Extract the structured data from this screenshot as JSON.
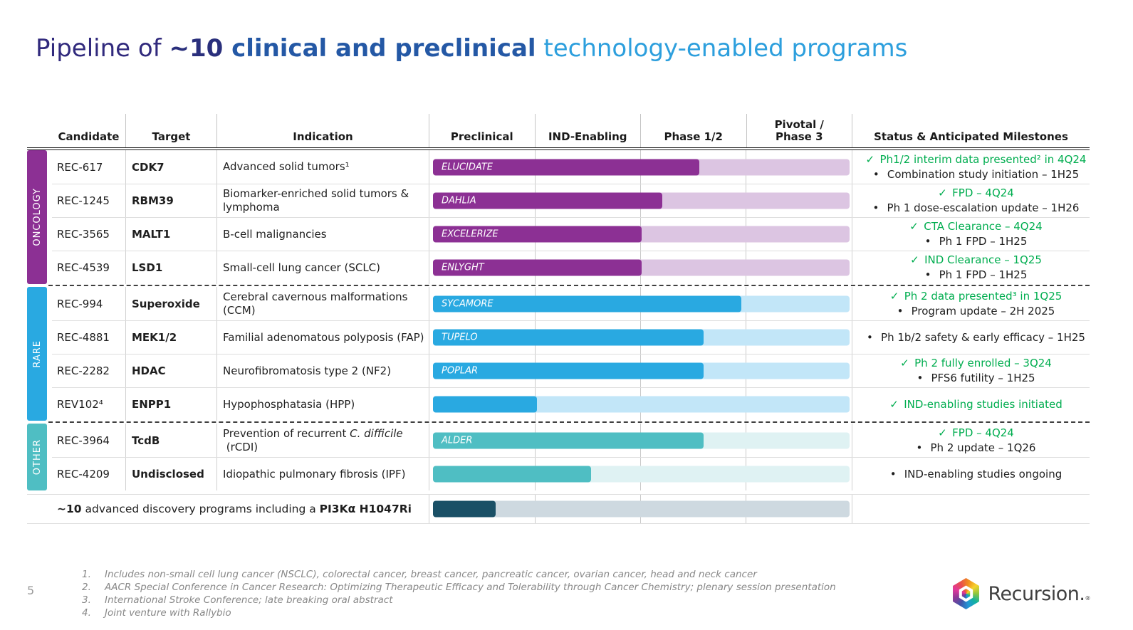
{
  "title": {
    "part1": "Pipeline of ",
    "part2": "~10",
    "part3": " clinical and preclinical",
    "part4": " technology-enabled programs"
  },
  "colors": {
    "oncology_bar": "#8c3094",
    "oncology_track": "#dcc5e2",
    "rare_bar": "#29a9e1",
    "rare_track": "#c2e6f8",
    "other_bar": "#4fbec3",
    "other_track": "#dff2f3",
    "discovery_bar": "#1a5066",
    "discovery_track": "#ced9e0",
    "milestone_done_green": "#00ad4f",
    "title_dark": "#312a7d",
    "title_mid": "#2458a5",
    "title_light": "#2d9fdd"
  },
  "table": {
    "headers": {
      "candidate": "Candidate",
      "target": "Target",
      "indication": "Indication",
      "stages": [
        "Preclinical",
        "IND-Enabling",
        "Phase 1/2",
        "Pivotal /\nPhase 3"
      ],
      "status": "Status & Anticipated Milestones"
    },
    "groups": [
      {
        "label": "ONCOLOGY",
        "rows": [
          {
            "candidate": "REC-617",
            "target": "CDK7",
            "ind_pre": "Advanced solid tumors¹",
            "ind_it": "",
            "ind_post": "",
            "trial": "ELUCIDATE",
            "progress": 64,
            "status": [
              {
                "mark": "✓",
                "text": "Ph1/2 interim data presented² in 4Q24"
              },
              {
                "mark": "•",
                "text": "Combination study initiation – 1H25"
              }
            ]
          },
          {
            "candidate": "REC-1245",
            "target": "RBM39",
            "ind_pre": "Biomarker-enriched solid tumors & lymphoma",
            "ind_it": "",
            "ind_post": "",
            "trial": "DAHLIA",
            "progress": 55,
            "status": [
              {
                "mark": "✓",
                "text": "FPD – 4Q24"
              },
              {
                "mark": "•",
                "text": "Ph 1 dose-escalation update – 1H26"
              }
            ]
          },
          {
            "candidate": "REC-3565",
            "target": "MALT1",
            "ind_pre": "B-cell malignancies",
            "ind_it": "",
            "ind_post": "",
            "trial": "EXCELERIZE",
            "progress": 50,
            "status": [
              {
                "mark": "✓",
                "text": "CTA Clearance – 4Q24"
              },
              {
                "mark": "•",
                "text": "Ph 1 FPD – 1H25"
              }
            ]
          },
          {
            "candidate": "REC-4539",
            "target": "LSD1",
            "ind_pre": "Small-cell lung cancer (SCLC)",
            "ind_it": "",
            "ind_post": "",
            "trial": "ENLYGHT",
            "progress": 50,
            "status": [
              {
                "mark": "✓",
                "text": "IND Clearance – 1Q25"
              },
              {
                "mark": "•",
                "text": "Ph 1 FPD – 1H25"
              }
            ]
          }
        ]
      },
      {
        "label": "RARE",
        "rows": [
          {
            "candidate": "REC-994",
            "target": "Superoxide",
            "ind_pre": "Cerebral cavernous malformations (CCM)",
            "ind_it": "",
            "ind_post": "",
            "trial": "SYCAMORE",
            "progress": 74,
            "status": [
              {
                "mark": "✓",
                "text": "Ph 2 data presented³ in 1Q25"
              },
              {
                "mark": "•",
                "text": "Program update – 2H 2025"
              }
            ]
          },
          {
            "candidate": "REC-4881",
            "target": "MEK1/2",
            "ind_pre": "Familial adenomatous polyposis (FAP)",
            "ind_it": "",
            "ind_post": "",
            "trial": "TUPELO",
            "progress": 65,
            "status": [
              {
                "mark": "•",
                "text": "Ph 1b/2 safety & early efficacy – 1H25"
              }
            ]
          },
          {
            "candidate": "REC-2282",
            "target": "HDAC",
            "ind_pre": "Neurofibromatosis type 2 (NF2)",
            "ind_it": "",
            "ind_post": "",
            "trial": "POPLAR",
            "progress": 65,
            "status": [
              {
                "mark": "✓",
                "text": "Ph 2 fully enrolled – 3Q24"
              },
              {
                "mark": "•",
                "text": "PFS6 futility – 1H25"
              }
            ]
          },
          {
            "candidate": "REV102⁴",
            "target": "ENPP1",
            "ind_pre": "Hypophosphatasia (HPP)",
            "ind_it": "",
            "ind_post": "",
            "trial": "",
            "progress": 25,
            "status": [
              {
                "mark": "✓",
                "text": "IND-enabling studies initiated"
              }
            ]
          }
        ]
      },
      {
        "label": "OTHER",
        "rows": [
          {
            "candidate": "REC-3964",
            "target": "TcdB",
            "ind_pre": "Prevention of recurrent ",
            "ind_it": "C. difficile",
            "ind_post": " (rCDI)",
            "trial": "ALDER",
            "progress": 65,
            "status": [
              {
                "mark": "✓",
                "text": "FPD – 4Q24"
              },
              {
                "mark": "•",
                "text": "Ph 2 update – 1Q26"
              }
            ]
          },
          {
            "candidate": "REC-4209",
            "target": "Undisclosed",
            "ind_pre": "Idiopathic pulmonary fibrosis (IPF)",
            "ind_it": "",
            "ind_post": "",
            "trial": "",
            "progress": 38,
            "status": [
              {
                "mark": "•",
                "text": "IND-enabling studies ongoing"
              }
            ]
          }
        ]
      }
    ],
    "discovery": {
      "part1": "~10",
      "part2": " advanced discovery programs including a ",
      "part3": "PI3Kα H1047Ri",
      "trial": "",
      "progress": 15
    }
  },
  "chart_data": {
    "type": "bar",
    "orientation": "horizontal",
    "title": "Pipeline of ~10 clinical and preclinical technology-enabled programs",
    "stage_axis": [
      "Preclinical",
      "IND-Enabling",
      "Phase 1/2",
      "Pivotal / Phase 3"
    ],
    "xlim_pct": [
      0,
      100
    ],
    "bars": [
      {
        "candidate": "REC-617",
        "group": "ONCOLOGY",
        "trial": "ELUCIDATE",
        "progress_pct": 64
      },
      {
        "candidate": "REC-1245",
        "group": "ONCOLOGY",
        "trial": "DAHLIA",
        "progress_pct": 55
      },
      {
        "candidate": "REC-3565",
        "group": "ONCOLOGY",
        "trial": "EXCELERIZE",
        "progress_pct": 50
      },
      {
        "candidate": "REC-4539",
        "group": "ONCOLOGY",
        "trial": "ENLYGHT",
        "progress_pct": 50
      },
      {
        "candidate": "REC-994",
        "group": "RARE",
        "trial": "SYCAMORE",
        "progress_pct": 74
      },
      {
        "candidate": "REC-4881",
        "group": "RARE",
        "trial": "TUPELO",
        "progress_pct": 65
      },
      {
        "candidate": "REC-2282",
        "group": "RARE",
        "trial": "POPLAR",
        "progress_pct": 65
      },
      {
        "candidate": "REV102",
        "group": "RARE",
        "trial": "",
        "progress_pct": 25
      },
      {
        "candidate": "REC-3964",
        "group": "OTHER",
        "trial": "ALDER",
        "progress_pct": 65
      },
      {
        "candidate": "REC-4209",
        "group": "OTHER",
        "trial": "",
        "progress_pct": 38
      },
      {
        "candidate": "~10 advanced discovery programs including a PI3Kα H1047Ri",
        "group": "DISCOVERY",
        "trial": "",
        "progress_pct": 15
      }
    ]
  },
  "footnotes": [
    {
      "num": "1.",
      "text": "Includes non-small cell lung cancer (NSCLC), colorectal cancer, breast cancer, pancreatic cancer, ovarian cancer, head and neck cancer"
    },
    {
      "num": "2.",
      "text": "AACR Special Conference in Cancer Research: Optimizing Therapeutic Efficacy and Tolerability through Cancer Chemistry; plenary session presentation"
    },
    {
      "num": "3.",
      "text": "International Stroke Conference; late breaking oral abstract"
    },
    {
      "num": "4.",
      "text": "Joint venture with Rallybio"
    }
  ],
  "page_number": "5",
  "logo": {
    "text": "Recursion.",
    "reg": "®"
  }
}
